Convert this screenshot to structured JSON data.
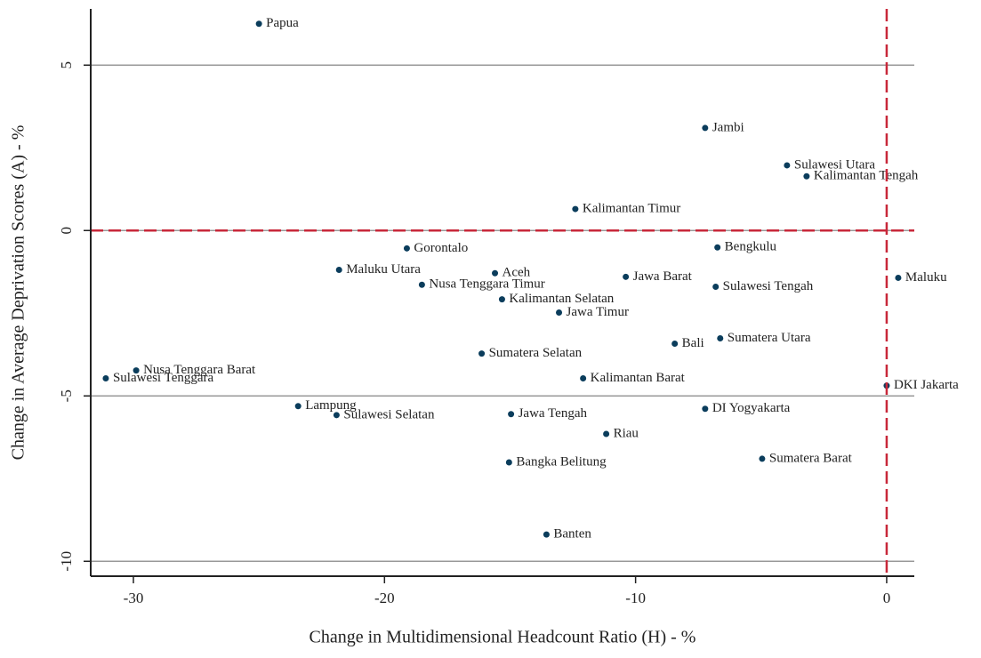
{
  "chart_data": {
    "type": "scatter",
    "x_label": "Change in Multidimensional Headcount Ratio (H) - %",
    "y_label": "Change in Average Deprivation Scores (A) - %",
    "xlim": [
      -31.7,
      1.1
    ],
    "ylim": [
      -10.45,
      6.7
    ],
    "xticks": [
      -30,
      -20,
      -10,
      0
    ],
    "yticks": [
      -10,
      -5,
      0,
      5
    ],
    "grid": true,
    "color": "#0b3d5c",
    "ref_color": "#c8283a",
    "vline": 0,
    "hline": 0,
    "labels": [
      "Papua",
      "Jambi",
      "Sulawesi Utara",
      "Kalimantan Tengah",
      "Kalimantan Timur",
      "Gorontalo",
      "Bengkulu",
      "Maluku Utara",
      "Aceh",
      "Jawa Barat",
      "Maluku",
      "Nusa Tenggara Timur",
      "Sulawesi Tengah",
      "Kalimantan Selatan",
      "Jawa Timur",
      "Sumatera Utara",
      "Bali",
      "Sumatera Selatan",
      "Nusa Tenggara Barat",
      "Sulawesi Tenggara",
      "Kalimantan Barat",
      "DKI Jakarta",
      "Lampung",
      "DI Yogyakarta",
      "Sulawesi Selatan",
      "Jawa Tengah",
      "Riau",
      "Bangka Belitung",
      "Sumatera Barat",
      "Banten"
    ],
    "x": [
      -25.0,
      -7.23,
      -3.97,
      -3.19,
      -12.4,
      -19.11,
      -6.74,
      -21.81,
      -15.6,
      -10.39,
      0.46,
      -18.51,
      -6.81,
      -15.32,
      -13.05,
      -6.63,
      -8.44,
      -16.13,
      -29.89,
      -31.1,
      -12.09,
      0.0,
      -23.44,
      -7.23,
      -21.91,
      -14.96,
      -11.17,
      -15.04,
      -4.96,
      -13.55
    ],
    "values": [
      6.25,
      3.1,
      1.97,
      1.64,
      0.65,
      -0.54,
      -0.51,
      -1.19,
      -1.29,
      -1.4,
      -1.43,
      -1.64,
      -1.7,
      -2.08,
      -2.48,
      -3.26,
      -3.42,
      -3.72,
      -4.23,
      -4.47,
      -4.47,
      -4.69,
      -5.31,
      -5.39,
      -5.58,
      -5.55,
      -6.15,
      -7.01,
      -6.9,
      -9.19
    ]
  }
}
